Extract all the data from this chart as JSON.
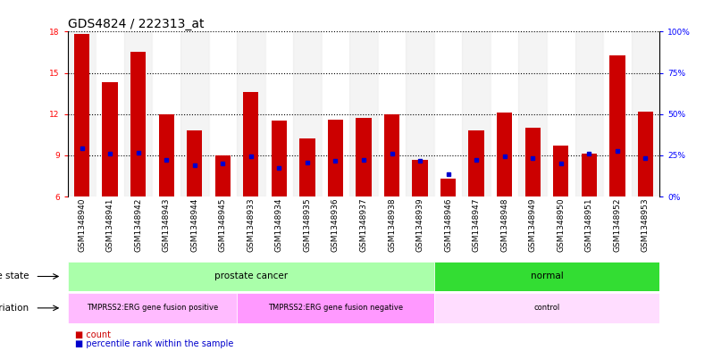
{
  "title": "GDS4824 / 222313_at",
  "samples": [
    "GSM1348940",
    "GSM1348941",
    "GSM1348942",
    "GSM1348943",
    "GSM1348944",
    "GSM1348945",
    "GSM1348933",
    "GSM1348934",
    "GSM1348935",
    "GSM1348936",
    "GSM1348937",
    "GSM1348938",
    "GSM1348939",
    "GSM1348946",
    "GSM1348947",
    "GSM1348948",
    "GSM1348949",
    "GSM1348950",
    "GSM1348951",
    "GSM1348952",
    "GSM1348953"
  ],
  "bar_heights": [
    17.8,
    14.3,
    16.5,
    12.0,
    10.8,
    9.0,
    13.6,
    11.5,
    10.2,
    11.6,
    11.7,
    12.0,
    8.7,
    7.3,
    10.8,
    12.1,
    11.0,
    9.7,
    9.1,
    16.3,
    12.2
  ],
  "percentile_values": [
    9.5,
    9.1,
    9.2,
    8.7,
    8.3,
    8.4,
    8.9,
    8.1,
    8.5,
    8.6,
    8.7,
    9.1,
    8.6,
    7.6,
    8.7,
    8.9,
    8.8,
    8.4,
    9.1,
    9.3,
    8.8
  ],
  "ymin": 6,
  "ymax": 18,
  "yticks_left": [
    6,
    9,
    12,
    15,
    18
  ],
  "yticks_right": [
    0,
    25,
    50,
    75,
    100
  ],
  "bar_color": "#cc0000",
  "marker_color": "#0000cc",
  "disease_state_groups": [
    {
      "label": "prostate cancer",
      "start": 0,
      "end": 13,
      "color": "#aaffaa"
    },
    {
      "label": "normal",
      "start": 13,
      "end": 21,
      "color": "#33dd33"
    }
  ],
  "genotype_groups": [
    {
      "label": "TMPRSS2:ERG gene fusion positive",
      "start": 0,
      "end": 6,
      "color": "#ffbbff"
    },
    {
      "label": "TMPRSS2:ERG gene fusion negative",
      "start": 6,
      "end": 13,
      "color": "#ff99ff"
    },
    {
      "label": "control",
      "start": 13,
      "end": 21,
      "color": "#ffddff"
    }
  ],
  "xtick_bg_colors": [
    "#dddddd",
    "#ffffff"
  ],
  "legend_count_color": "#cc0000",
  "legend_marker_color": "#0000cc",
  "bg_color": "#ffffff",
  "title_fontsize": 10,
  "tick_fontsize": 6.5,
  "label_fontsize": 7.5,
  "annot_fontsize": 7.5
}
